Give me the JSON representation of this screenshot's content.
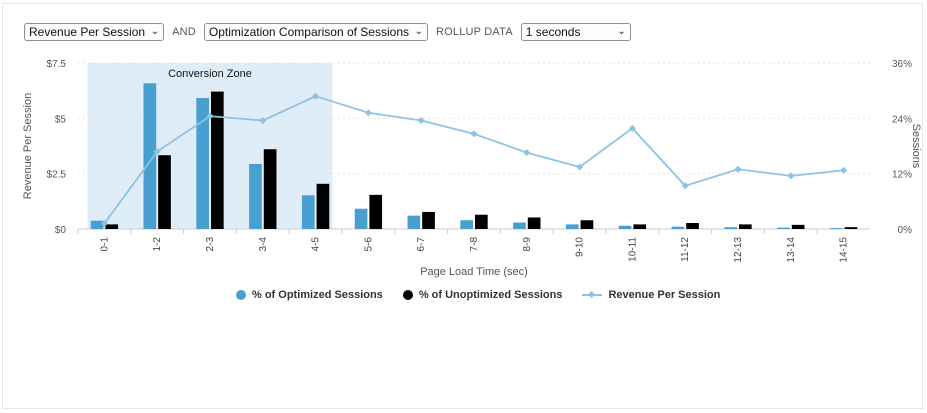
{
  "controls": {
    "metric_select": "Revenue Per Session",
    "and_label": "AND",
    "comparison_select": "Optimization Comparison of Sessions",
    "rollup_label": "ROLLUP DATA",
    "rollup_select": "1 seconds"
  },
  "colors": {
    "optimized": "#4a9fd1",
    "unoptimized": "#000000",
    "revenue_line": "#8ec3e3",
    "conversion_zone": "#deedf8",
    "grid": "#e6e6e6"
  },
  "chart_data": {
    "type": "bar",
    "xlabel": "Page Load Time (sec)",
    "ylabel_left": "Revenue Per Session",
    "ylabel_right": "Sessions",
    "categories": [
      "0-1",
      "1-2",
      "2-3",
      "3-4",
      "4-5",
      "5-6",
      "6-7",
      "7-8",
      "8-9",
      "9-10",
      "10-11",
      "11-12",
      "12-13",
      "13-14",
      "14-15"
    ],
    "y_left": {
      "min": 0,
      "max": 7.5,
      "ticks": [
        0,
        2.5,
        5,
        7.5
      ],
      "tick_labels": [
        "$0",
        "$2.5",
        "$5",
        "$7.5"
      ]
    },
    "y_right": {
      "min": 0,
      "max": 36,
      "ticks": [
        0,
        12,
        24,
        36
      ],
      "tick_labels": [
        "0%",
        "12%",
        "24%",
        "36%"
      ]
    },
    "series": [
      {
        "name": "% of Optimized Sessions",
        "kind": "bar",
        "axis": "right",
        "values": [
          1.8,
          31.6,
          28.4,
          14.1,
          7.3,
          4.4,
          2.9,
          1.9,
          1.4,
          1.0,
          0.7,
          0.5,
          0.4,
          0.3,
          0.2
        ]
      },
      {
        "name": "% of Unoptimized Sessions",
        "kind": "bar",
        "axis": "right",
        "values": [
          1.0,
          16.0,
          29.8,
          17.3,
          9.8,
          7.4,
          3.7,
          3.1,
          2.5,
          1.9,
          1.0,
          1.3,
          1.0,
          0.9,
          0.4
        ]
      },
      {
        "name": "Revenue Per Session",
        "kind": "line",
        "axis": "left",
        "values": [
          0.25,
          3.5,
          5.1,
          4.9,
          6.0,
          5.25,
          4.9,
          4.3,
          3.45,
          2.8,
          4.55,
          1.95,
          2.7,
          2.4,
          2.65
        ]
      }
    ],
    "annotation": {
      "label": "Conversion Zone",
      "from_category": 0,
      "to_category": 4
    },
    "grid": true,
    "legend_position": "bottom"
  }
}
